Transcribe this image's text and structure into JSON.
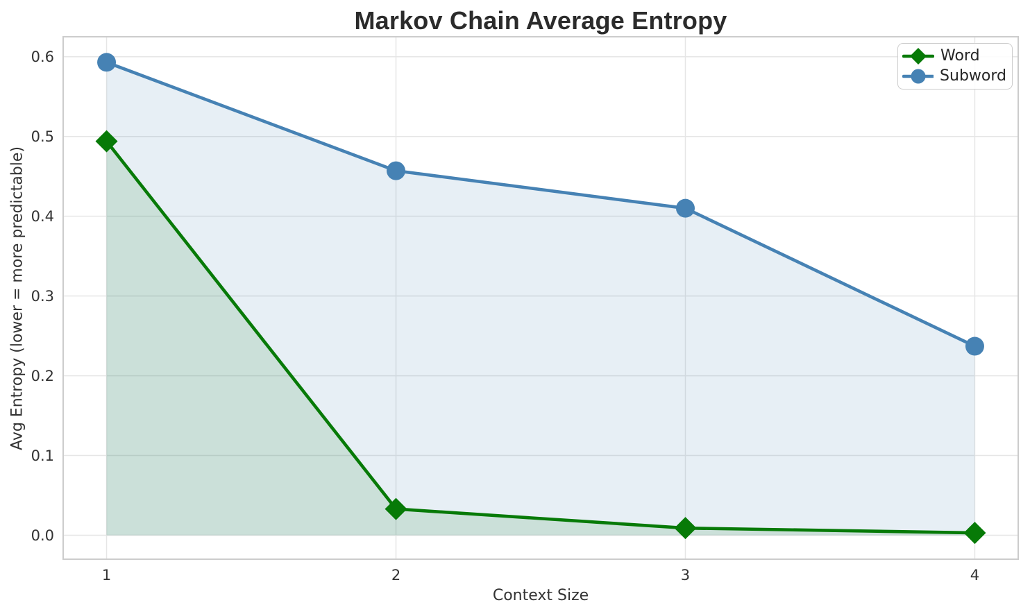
{
  "chart_data": {
    "type": "line",
    "title": "Markov Chain Average Entropy",
    "xlabel": "Context Size",
    "ylabel": "Avg Entropy (lower = more predictable)",
    "x": [
      1,
      2,
      3,
      4
    ],
    "x_tick_labels": [
      "1",
      "2",
      "3",
      "4"
    ],
    "y_ticks": [
      0.0,
      0.1,
      0.2,
      0.3,
      0.4,
      0.5,
      0.6
    ],
    "y_tick_labels": [
      "0.0",
      "0.1",
      "0.2",
      "0.3",
      "0.4",
      "0.5",
      "0.6"
    ],
    "x_range": [
      0.85,
      4.15
    ],
    "y_range": [
      -0.03,
      0.625
    ],
    "grid": true,
    "legend_position": "upper right",
    "area_fill": true,
    "fill_baseline": 0.0,
    "fill_opacity": 0.13,
    "series": [
      {
        "name": "Word",
        "marker": "diamond",
        "color": "#077a07",
        "values": [
          0.494,
          0.033,
          0.009,
          0.003
        ]
      },
      {
        "name": "Subword",
        "marker": "circle",
        "color": "#4682b4",
        "values": [
          0.593,
          0.457,
          0.41,
          0.237
        ]
      }
    ],
    "colors": {
      "grid": "#e6e6e6",
      "spine": "#cccccc",
      "tick_label": "#333333",
      "title": "#2b2b2b"
    }
  }
}
